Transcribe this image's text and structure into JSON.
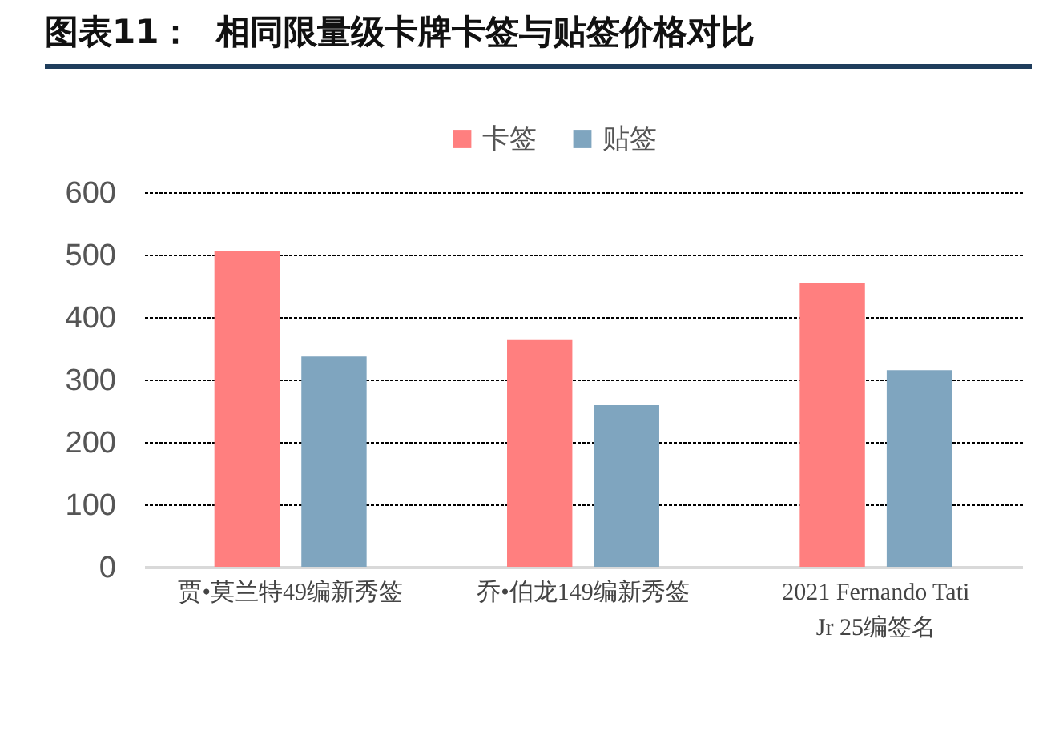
{
  "chart_data": {
    "type": "bar",
    "title": "图表11：  相同限量级卡牌卡签与贴签价格对比",
    "categories": [
      "贾•莫兰特49编新秀签",
      "乔•伯龙149编新秀签",
      "2021 Fernando Tati Jr 25编签名"
    ],
    "series": [
      {
        "name": "卡签",
        "color": "#ff7f7f",
        "values": [
          505,
          363,
          455
        ]
      },
      {
        "name": "贴签",
        "color": "#7fa5bf",
        "values": [
          337,
          259,
          315
        ]
      }
    ],
    "ylim": [
      0,
      600
    ],
    "yticks": [
      0,
      100,
      200,
      300,
      400,
      500,
      600
    ],
    "grid": "y",
    "legend": "top"
  }
}
